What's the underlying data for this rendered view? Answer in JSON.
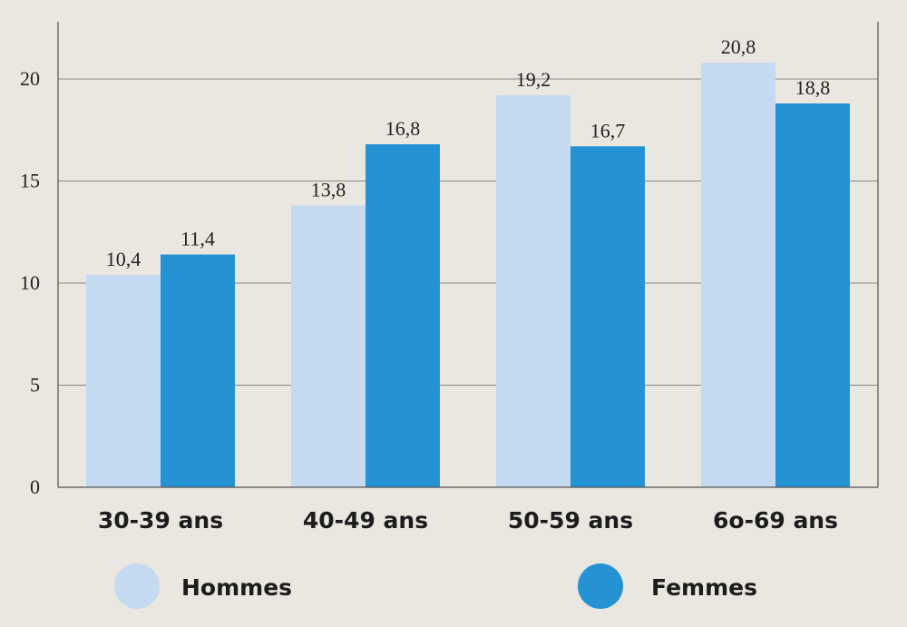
{
  "chart_data": {
    "type": "bar",
    "categories": [
      "30-39 ans",
      "40-49 ans",
      "50-59 ans",
      "6o-69 ans"
    ],
    "series": [
      {
        "name": "Hommes",
        "values": [
          10.4,
          13.8,
          19.2,
          20.8
        ],
        "value_labels": [
          "10,4",
          "13,8",
          "19,2",
          "20,8"
        ],
        "color": "#c5d9f0"
      },
      {
        "name": "Femmes",
        "values": [
          11.4,
          16.8,
          16.7,
          18.8
        ],
        "value_labels": [
          "11,4",
          "16,8",
          "16,7",
          "18,8"
        ],
        "color": "#2593d3"
      }
    ],
    "yticks": [
      0,
      5,
      10,
      15,
      20
    ],
    "ylim": [
      0,
      22.8
    ],
    "grid": true,
    "legend_position": "bottom",
    "title": "",
    "xlabel": "",
    "ylabel": ""
  },
  "colors": {
    "background": "#eae6e0",
    "gridline": "#8a8a8a",
    "axis": "#555555"
  }
}
